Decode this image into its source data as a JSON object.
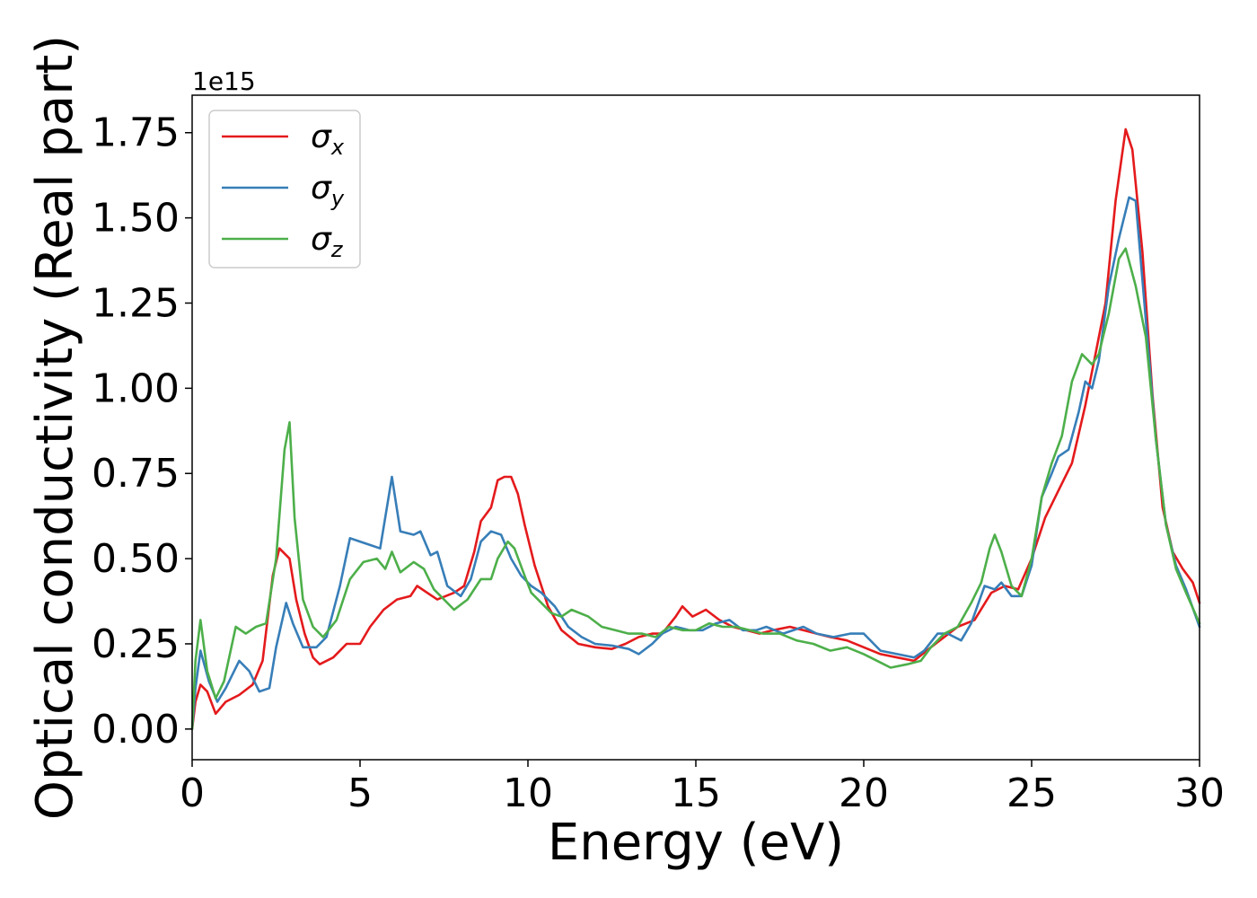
{
  "chart_data": {
    "type": "line",
    "xlabel": "Energy (eV)",
    "ylabel": "Optical conductivity (Real part)",
    "y_offset_label": "1e15",
    "xlim": [
      0,
      30
    ],
    "ylim": [
      -0.09,
      1.86
    ],
    "x_ticks": [
      0,
      5,
      10,
      15,
      20,
      25,
      30
    ],
    "y_ticks": [
      0.0,
      0.25,
      0.5,
      0.75,
      1.0,
      1.25,
      1.5,
      1.75
    ],
    "x_tick_labels": [
      "0",
      "5",
      "10",
      "15",
      "20",
      "25",
      "30"
    ],
    "y_tick_labels": [
      "0.00",
      "0.25",
      "0.50",
      "0.75",
      "1.00",
      "1.25",
      "1.50",
      "1.75"
    ],
    "grid": false,
    "legend_position": "top-left",
    "series": [
      {
        "name": "σx",
        "legend_base": "σ",
        "legend_sub": "x",
        "color": "#e41a1c",
        "points": [
          [
            0,
            0
          ],
          [
            0.1,
            0.08
          ],
          [
            0.25,
            0.13
          ],
          [
            0.45,
            0.11
          ],
          [
            0.7,
            0.045
          ],
          [
            1.0,
            0.08
          ],
          [
            1.4,
            0.1
          ],
          [
            1.8,
            0.13
          ],
          [
            2.1,
            0.2
          ],
          [
            2.4,
            0.45
          ],
          [
            2.6,
            0.53
          ],
          [
            2.9,
            0.5
          ],
          [
            3.1,
            0.38
          ],
          [
            3.35,
            0.28
          ],
          [
            3.6,
            0.21
          ],
          [
            3.8,
            0.19
          ],
          [
            4.2,
            0.21
          ],
          [
            4.6,
            0.25
          ],
          [
            5.0,
            0.25
          ],
          [
            5.3,
            0.3
          ],
          [
            5.7,
            0.35
          ],
          [
            6.1,
            0.38
          ],
          [
            6.5,
            0.39
          ],
          [
            6.7,
            0.42
          ],
          [
            7.0,
            0.4
          ],
          [
            7.3,
            0.38
          ],
          [
            7.8,
            0.4
          ],
          [
            8.1,
            0.42
          ],
          [
            8.4,
            0.52
          ],
          [
            8.6,
            0.61
          ],
          [
            8.9,
            0.65
          ],
          [
            9.1,
            0.73
          ],
          [
            9.3,
            0.74
          ],
          [
            9.5,
            0.74
          ],
          [
            9.7,
            0.69
          ],
          [
            9.9,
            0.6
          ],
          [
            10.2,
            0.48
          ],
          [
            10.6,
            0.36
          ],
          [
            11.0,
            0.29
          ],
          [
            11.5,
            0.25
          ],
          [
            12.0,
            0.24
          ],
          [
            12.5,
            0.235
          ],
          [
            12.9,
            0.25
          ],
          [
            13.3,
            0.27
          ],
          [
            13.7,
            0.28
          ],
          [
            14.0,
            0.28
          ],
          [
            14.4,
            0.33
          ],
          [
            14.6,
            0.36
          ],
          [
            14.9,
            0.33
          ],
          [
            15.3,
            0.35
          ],
          [
            15.7,
            0.32
          ],
          [
            16.1,
            0.3
          ],
          [
            16.5,
            0.29
          ],
          [
            16.9,
            0.28
          ],
          [
            17.3,
            0.29
          ],
          [
            17.8,
            0.3
          ],
          [
            18.2,
            0.29
          ],
          [
            18.6,
            0.28
          ],
          [
            19.0,
            0.27
          ],
          [
            19.5,
            0.26
          ],
          [
            20.0,
            0.24
          ],
          [
            20.5,
            0.22
          ],
          [
            21.0,
            0.21
          ],
          [
            21.5,
            0.2
          ],
          [
            22.0,
            0.24
          ],
          [
            22.4,
            0.27
          ],
          [
            22.8,
            0.3
          ],
          [
            23.3,
            0.32
          ],
          [
            23.8,
            0.4
          ],
          [
            24.2,
            0.42
          ],
          [
            24.6,
            0.41
          ],
          [
            25.0,
            0.5
          ],
          [
            25.4,
            0.62
          ],
          [
            25.8,
            0.7
          ],
          [
            26.2,
            0.78
          ],
          [
            26.6,
            0.95
          ],
          [
            26.9,
            1.1
          ],
          [
            27.2,
            1.25
          ],
          [
            27.5,
            1.55
          ],
          [
            27.8,
            1.76
          ],
          [
            28.0,
            1.7
          ],
          [
            28.3,
            1.4
          ],
          [
            28.6,
            0.98
          ],
          [
            28.9,
            0.65
          ],
          [
            29.2,
            0.52
          ],
          [
            29.5,
            0.47
          ],
          [
            29.8,
            0.43
          ],
          [
            30.0,
            0.37
          ]
        ]
      },
      {
        "name": "σy",
        "legend_base": "σ",
        "legend_sub": "y",
        "color": "#377eb8",
        "points": [
          [
            0,
            0
          ],
          [
            0.1,
            0.12
          ],
          [
            0.25,
            0.23
          ],
          [
            0.5,
            0.14
          ],
          [
            0.75,
            0.08
          ],
          [
            1.0,
            0.12
          ],
          [
            1.4,
            0.2
          ],
          [
            1.7,
            0.17
          ],
          [
            2.0,
            0.11
          ],
          [
            2.3,
            0.12
          ],
          [
            2.5,
            0.24
          ],
          [
            2.8,
            0.37
          ],
          [
            3.0,
            0.31
          ],
          [
            3.3,
            0.24
          ],
          [
            3.7,
            0.24
          ],
          [
            4.0,
            0.27
          ],
          [
            4.4,
            0.42
          ],
          [
            4.7,
            0.56
          ],
          [
            5.0,
            0.55
          ],
          [
            5.3,
            0.54
          ],
          [
            5.6,
            0.53
          ],
          [
            5.8,
            0.65
          ],
          [
            5.95,
            0.74
          ],
          [
            6.2,
            0.58
          ],
          [
            6.6,
            0.57
          ],
          [
            6.8,
            0.58
          ],
          [
            7.1,
            0.51
          ],
          [
            7.3,
            0.52
          ],
          [
            7.6,
            0.42
          ],
          [
            8.0,
            0.39
          ],
          [
            8.3,
            0.44
          ],
          [
            8.6,
            0.55
          ],
          [
            8.9,
            0.58
          ],
          [
            9.2,
            0.57
          ],
          [
            9.5,
            0.5
          ],
          [
            9.8,
            0.45
          ],
          [
            10.1,
            0.42
          ],
          [
            10.4,
            0.4
          ],
          [
            10.8,
            0.36
          ],
          [
            11.2,
            0.3
          ],
          [
            11.6,
            0.27
          ],
          [
            12.0,
            0.25
          ],
          [
            12.5,
            0.245
          ],
          [
            13.0,
            0.235
          ],
          [
            13.3,
            0.22
          ],
          [
            13.7,
            0.25
          ],
          [
            14.0,
            0.28
          ],
          [
            14.4,
            0.3
          ],
          [
            14.8,
            0.29
          ],
          [
            15.2,
            0.29
          ],
          [
            15.6,
            0.31
          ],
          [
            16.0,
            0.32
          ],
          [
            16.4,
            0.29
          ],
          [
            16.8,
            0.29
          ],
          [
            17.1,
            0.3
          ],
          [
            17.6,
            0.28
          ],
          [
            18.2,
            0.3
          ],
          [
            18.6,
            0.28
          ],
          [
            19.1,
            0.27
          ],
          [
            19.6,
            0.28
          ],
          [
            20.0,
            0.28
          ],
          [
            20.5,
            0.23
          ],
          [
            21.0,
            0.22
          ],
          [
            21.5,
            0.21
          ],
          [
            21.8,
            0.23
          ],
          [
            22.2,
            0.28
          ],
          [
            22.5,
            0.28
          ],
          [
            22.9,
            0.26
          ],
          [
            23.2,
            0.31
          ],
          [
            23.6,
            0.42
          ],
          [
            23.9,
            0.41
          ],
          [
            24.1,
            0.43
          ],
          [
            24.4,
            0.39
          ],
          [
            24.7,
            0.39
          ],
          [
            25.0,
            0.48
          ],
          [
            25.3,
            0.68
          ],
          [
            25.6,
            0.75
          ],
          [
            25.8,
            0.8
          ],
          [
            26.1,
            0.82
          ],
          [
            26.4,
            0.93
          ],
          [
            26.6,
            1.02
          ],
          [
            26.8,
            1.0
          ],
          [
            27.0,
            1.08
          ],
          [
            27.3,
            1.3
          ],
          [
            27.6,
            1.44
          ],
          [
            27.9,
            1.56
          ],
          [
            28.1,
            1.55
          ],
          [
            28.4,
            1.2
          ],
          [
            28.7,
            0.85
          ],
          [
            29.0,
            0.6
          ],
          [
            29.3,
            0.48
          ],
          [
            29.6,
            0.41
          ],
          [
            30.0,
            0.3
          ]
        ]
      },
      {
        "name": "σz",
        "legend_base": "σ",
        "legend_sub": "z",
        "color": "#4daf4a",
        "points": [
          [
            0,
            0
          ],
          [
            0.1,
            0.2
          ],
          [
            0.25,
            0.32
          ],
          [
            0.45,
            0.17
          ],
          [
            0.7,
            0.09
          ],
          [
            0.95,
            0.14
          ],
          [
            1.3,
            0.3
          ],
          [
            1.6,
            0.28
          ],
          [
            1.9,
            0.3
          ],
          [
            2.2,
            0.31
          ],
          [
            2.5,
            0.5
          ],
          [
            2.75,
            0.82
          ],
          [
            2.9,
            0.9
          ],
          [
            3.05,
            0.62
          ],
          [
            3.3,
            0.38
          ],
          [
            3.6,
            0.3
          ],
          [
            3.9,
            0.27
          ],
          [
            4.3,
            0.32
          ],
          [
            4.7,
            0.44
          ],
          [
            5.1,
            0.49
          ],
          [
            5.5,
            0.5
          ],
          [
            5.75,
            0.47
          ],
          [
            5.95,
            0.52
          ],
          [
            6.2,
            0.46
          ],
          [
            6.6,
            0.49
          ],
          [
            6.9,
            0.47
          ],
          [
            7.2,
            0.41
          ],
          [
            7.5,
            0.38
          ],
          [
            7.8,
            0.35
          ],
          [
            8.2,
            0.38
          ],
          [
            8.6,
            0.44
          ],
          [
            8.9,
            0.44
          ],
          [
            9.1,
            0.5
          ],
          [
            9.4,
            0.55
          ],
          [
            9.6,
            0.53
          ],
          [
            9.9,
            0.45
          ],
          [
            10.1,
            0.4
          ],
          [
            10.4,
            0.37
          ],
          [
            10.7,
            0.34
          ],
          [
            11.0,
            0.33
          ],
          [
            11.3,
            0.35
          ],
          [
            11.8,
            0.33
          ],
          [
            12.2,
            0.3
          ],
          [
            12.6,
            0.29
          ],
          [
            13.0,
            0.28
          ],
          [
            13.4,
            0.28
          ],
          [
            13.8,
            0.27
          ],
          [
            14.2,
            0.3
          ],
          [
            14.6,
            0.29
          ],
          [
            15.0,
            0.29
          ],
          [
            15.4,
            0.31
          ],
          [
            15.8,
            0.3
          ],
          [
            16.2,
            0.3
          ],
          [
            16.6,
            0.29
          ],
          [
            17.0,
            0.28
          ],
          [
            17.5,
            0.28
          ],
          [
            18.0,
            0.26
          ],
          [
            18.5,
            0.25
          ],
          [
            19.0,
            0.23
          ],
          [
            19.5,
            0.24
          ],
          [
            20.0,
            0.22
          ],
          [
            20.4,
            0.2
          ],
          [
            20.8,
            0.18
          ],
          [
            21.3,
            0.19
          ],
          [
            21.7,
            0.2
          ],
          [
            22.0,
            0.24
          ],
          [
            22.4,
            0.28
          ],
          [
            22.8,
            0.3
          ],
          [
            23.2,
            0.37
          ],
          [
            23.5,
            0.43
          ],
          [
            23.75,
            0.53
          ],
          [
            23.9,
            0.57
          ],
          [
            24.1,
            0.52
          ],
          [
            24.4,
            0.42
          ],
          [
            24.7,
            0.39
          ],
          [
            25.0,
            0.5
          ],
          [
            25.3,
            0.68
          ],
          [
            25.6,
            0.78
          ],
          [
            25.9,
            0.86
          ],
          [
            26.2,
            1.02
          ],
          [
            26.5,
            1.1
          ],
          [
            26.8,
            1.07
          ],
          [
            27.0,
            1.1
          ],
          [
            27.3,
            1.22
          ],
          [
            27.6,
            1.38
          ],
          [
            27.8,
            1.41
          ],
          [
            28.1,
            1.3
          ],
          [
            28.4,
            1.15
          ],
          [
            28.7,
            0.85
          ],
          [
            29.0,
            0.6
          ],
          [
            29.3,
            0.47
          ],
          [
            29.6,
            0.4
          ],
          [
            30.0,
            0.31
          ]
        ]
      }
    ]
  }
}
